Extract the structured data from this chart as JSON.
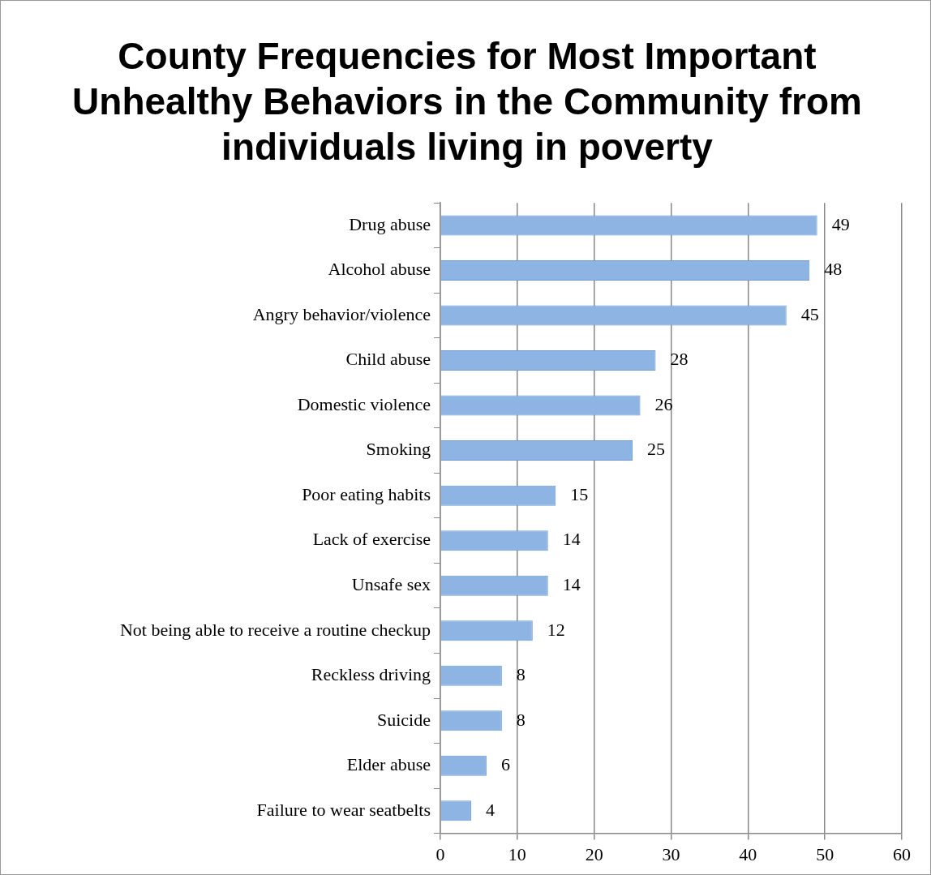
{
  "chart_data": {
    "type": "bar",
    "orientation": "horizontal",
    "title": "County Frequencies for Most Important Unhealthy Behaviors in the Community from individuals living in poverty",
    "categories": [
      "Drug abuse",
      "Alcohol abuse",
      "Angry behavior/violence",
      "Child abuse",
      "Domestic violence",
      "Smoking",
      "Poor eating habits",
      "Lack of exercise",
      "Unsafe sex",
      "Not being able to receive a routine checkup",
      "Reckless driving",
      "Suicide",
      "Elder abuse",
      "Failure to wear seatbelts"
    ],
    "values": [
      49,
      48,
      45,
      28,
      26,
      25,
      15,
      14,
      14,
      12,
      8,
      8,
      6,
      4
    ],
    "color": "#8db4e2",
    "xlim": [
      0,
      60
    ],
    "xticks": [
      0,
      10,
      20,
      30,
      40,
      50,
      60
    ],
    "grid": "x",
    "data_labels": true
  }
}
